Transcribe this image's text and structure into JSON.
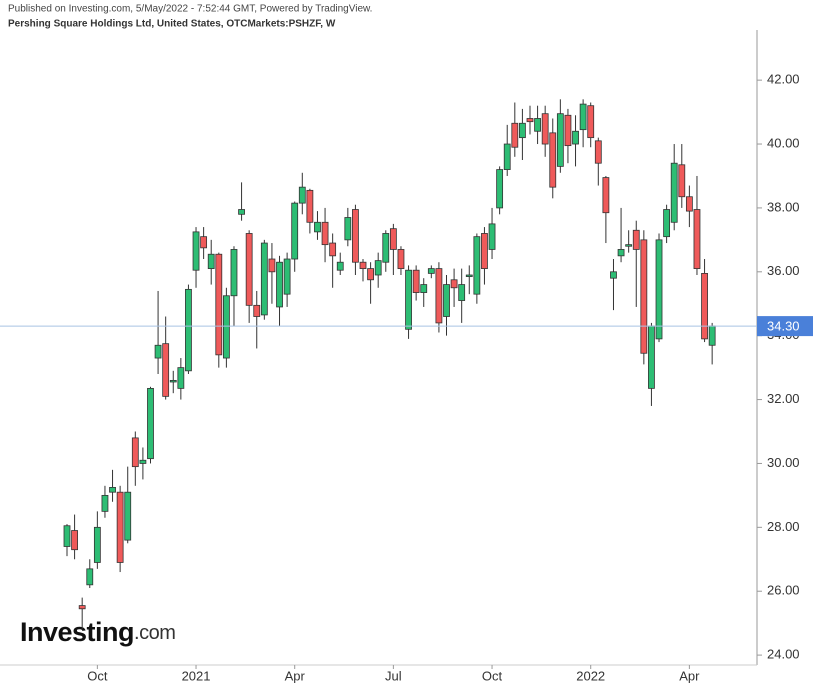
{
  "chart_data": {
    "type": "candlestick",
    "published": "Published on Investing.com, 5/May/2022 - 7:52:44 GMT, Powered by TradingView.",
    "title": "Pershing Square Holdings Ltd, United States, OTCMarkets:PSHZF, W",
    "logo": {
      "name": "Investing",
      "suffix": ".com"
    },
    "categories": [
      null,
      null,
      null,
      null,
      "Oct",
      null,
      null,
      null,
      null,
      null,
      null,
      null,
      null,
      null,
      null,
      null,
      null,
      "2021",
      null,
      null,
      null,
      null,
      null,
      null,
      null,
      null,
      null,
      null,
      null,
      null,
      "Apr",
      null,
      null,
      null,
      null,
      null,
      null,
      null,
      null,
      null,
      null,
      null,
      null,
      "Jul",
      null,
      null,
      null,
      null,
      null,
      null,
      null,
      null,
      null,
      null,
      null,
      null,
      "Oct",
      null,
      null,
      null,
      null,
      null,
      null,
      null,
      null,
      null,
      null,
      null,
      null,
      "2022",
      null,
      null,
      null,
      null,
      null,
      null,
      null,
      null,
      null,
      null,
      null,
      null,
      "Apr",
      null,
      null,
      null
    ],
    "open": [
      27.4,
      27.9,
      25.55,
      26.2,
      26.9,
      28.5,
      29.1,
      29.1,
      27.6,
      30.8,
      30.0,
      30.15,
      33.3,
      33.75,
      32.55,
      32.35,
      32.9,
      36.05,
      37.1,
      36.1,
      36.55,
      33.3,
      35.25,
      37.8,
      37.2,
      34.95,
      34.65,
      36.4,
      34.9,
      35.3,
      36.4,
      38.15,
      38.55,
      37.25,
      37.55,
      36.9,
      36.05,
      37.0,
      37.95,
      36.3,
      36.1,
      35.9,
      36.3,
      37.35,
      36.7,
      34.2,
      36.05,
      35.35,
      35.95,
      36.1,
      34.6,
      35.75,
      35.1,
      35.85,
      35.3,
      37.2,
      36.7,
      38.0,
      39.2,
      40.65,
      40.2,
      40.8,
      40.4,
      40.95,
      40.35,
      39.3,
      40.9,
      40.0,
      40.45,
      41.2,
      40.1,
      38.95,
      35.8,
      36.5,
      36.8,
      37.3,
      37.0,
      32.35,
      33.9,
      37.1,
      37.55,
      39.35,
      38.35,
      37.95,
      35.95,
      33.7
    ],
    "high": [
      28.1,
      28.4,
      25.8,
      27.0,
      28.5,
      29.3,
      29.8,
      29.3,
      29.9,
      31.0,
      30.5,
      32.4,
      35.4,
      34.6,
      32.9,
      33.3,
      35.6,
      37.4,
      37.4,
      37.0,
      36.6,
      35.5,
      36.8,
      38.8,
      37.3,
      35.4,
      37.0,
      36.9,
      36.5,
      36.6,
      38.2,
      39.1,
      38.6,
      37.9,
      38.0,
      37.2,
      36.6,
      38.0,
      38.1,
      36.4,
      36.3,
      36.6,
      37.3,
      37.5,
      36.8,
      36.2,
      36.2,
      35.8,
      36.2,
      36.3,
      35.9,
      36.1,
      36.1,
      36.2,
      37.2,
      37.4,
      38.0,
      39.3,
      40.6,
      41.3,
      41.1,
      41.2,
      41.2,
      41.2,
      40.8,
      41.4,
      41.1,
      40.9,
      41.4,
      41.3,
      40.2,
      39.0,
      36.4,
      38.0,
      37.3,
      37.6,
      37.3,
      34.4,
      37.2,
      38.1,
      40.0,
      40.0,
      38.7,
      39.0,
      36.4,
      34.4
    ],
    "low": [
      27.1,
      27.0,
      24.8,
      26.1,
      26.7,
      28.3,
      28.8,
      26.6,
      27.5,
      29.3,
      29.5,
      30.0,
      32.8,
      32.0,
      32.2,
      32.0,
      32.8,
      35.5,
      36.4,
      35.6,
      33.0,
      33.0,
      34.3,
      37.6,
      34.4,
      33.6,
      34.5,
      35.0,
      34.3,
      34.9,
      36.0,
      37.8,
      37.2,
      37.0,
      36.3,
      35.5,
      35.9,
      36.8,
      35.9,
      35.7,
      35.0,
      35.5,
      36.0,
      35.9,
      35.9,
      33.9,
      35.1,
      34.9,
      35.8,
      34.1,
      34.0,
      34.9,
      34.4,
      35.3,
      35.0,
      35.6,
      36.4,
      37.8,
      39.0,
      39.6,
      39.5,
      40.3,
      40.0,
      39.6,
      38.3,
      39.1,
      39.4,
      39.3,
      39.9,
      39.9,
      38.7,
      36.9,
      34.8,
      36.3,
      36.6,
      34.9,
      33.1,
      31.8,
      33.8,
      36.9,
      37.3,
      38.0,
      37.4,
      35.9,
      33.8,
      33.1
    ],
    "close": [
      28.05,
      27.3,
      25.45,
      26.7,
      28.0,
      29.0,
      29.25,
      26.9,
      29.1,
      29.9,
      30.1,
      32.35,
      33.7,
      32.1,
      32.6,
      33.0,
      35.45,
      37.25,
      36.75,
      36.55,
      33.4,
      35.25,
      36.7,
      37.95,
      34.95,
      34.6,
      36.9,
      36.0,
      36.3,
      36.4,
      38.15,
      38.65,
      37.55,
      37.55,
      36.85,
      36.5,
      36.3,
      37.7,
      36.3,
      36.1,
      35.75,
      36.35,
      37.2,
      36.7,
      36.1,
      36.05,
      35.35,
      35.6,
      36.1,
      34.4,
      35.6,
      35.5,
      35.6,
      35.9,
      37.1,
      36.1,
      37.5,
      39.2,
      40.0,
      39.9,
      40.65,
      40.7,
      40.8,
      40.0,
      38.65,
      40.95,
      39.95,
      40.4,
      41.25,
      40.2,
      39.4,
      37.85,
      36.0,
      36.7,
      36.85,
      36.7,
      33.45,
      34.3,
      37.0,
      37.95,
      39.4,
      38.35,
      37.9,
      36.1,
      33.9,
      34.3
    ],
    "up_color": "#2dbd74",
    "down_color": "#ef5a5a",
    "wick_color": "#333333",
    "last_price": {
      "value": 34.3,
      "label": "34.30"
    },
    "last_price_color": "#4a80d9",
    "ylim": [
      23.69,
      43.57
    ],
    "yticks": [
      {
        "value": 24,
        "label": "24.00"
      },
      {
        "value": 26,
        "label": "26.00"
      },
      {
        "value": 28,
        "label": "28.00"
      },
      {
        "value": 30,
        "label": "30.00"
      },
      {
        "value": 32,
        "label": "32.00"
      },
      {
        "value": 34,
        "label": "34.00"
      },
      {
        "value": 36,
        "label": "36.00"
      },
      {
        "value": 38,
        "label": "38.00"
      },
      {
        "value": 40,
        "label": "40.00"
      },
      {
        "value": 42,
        "label": "42.00"
      }
    ],
    "grid": false
  }
}
